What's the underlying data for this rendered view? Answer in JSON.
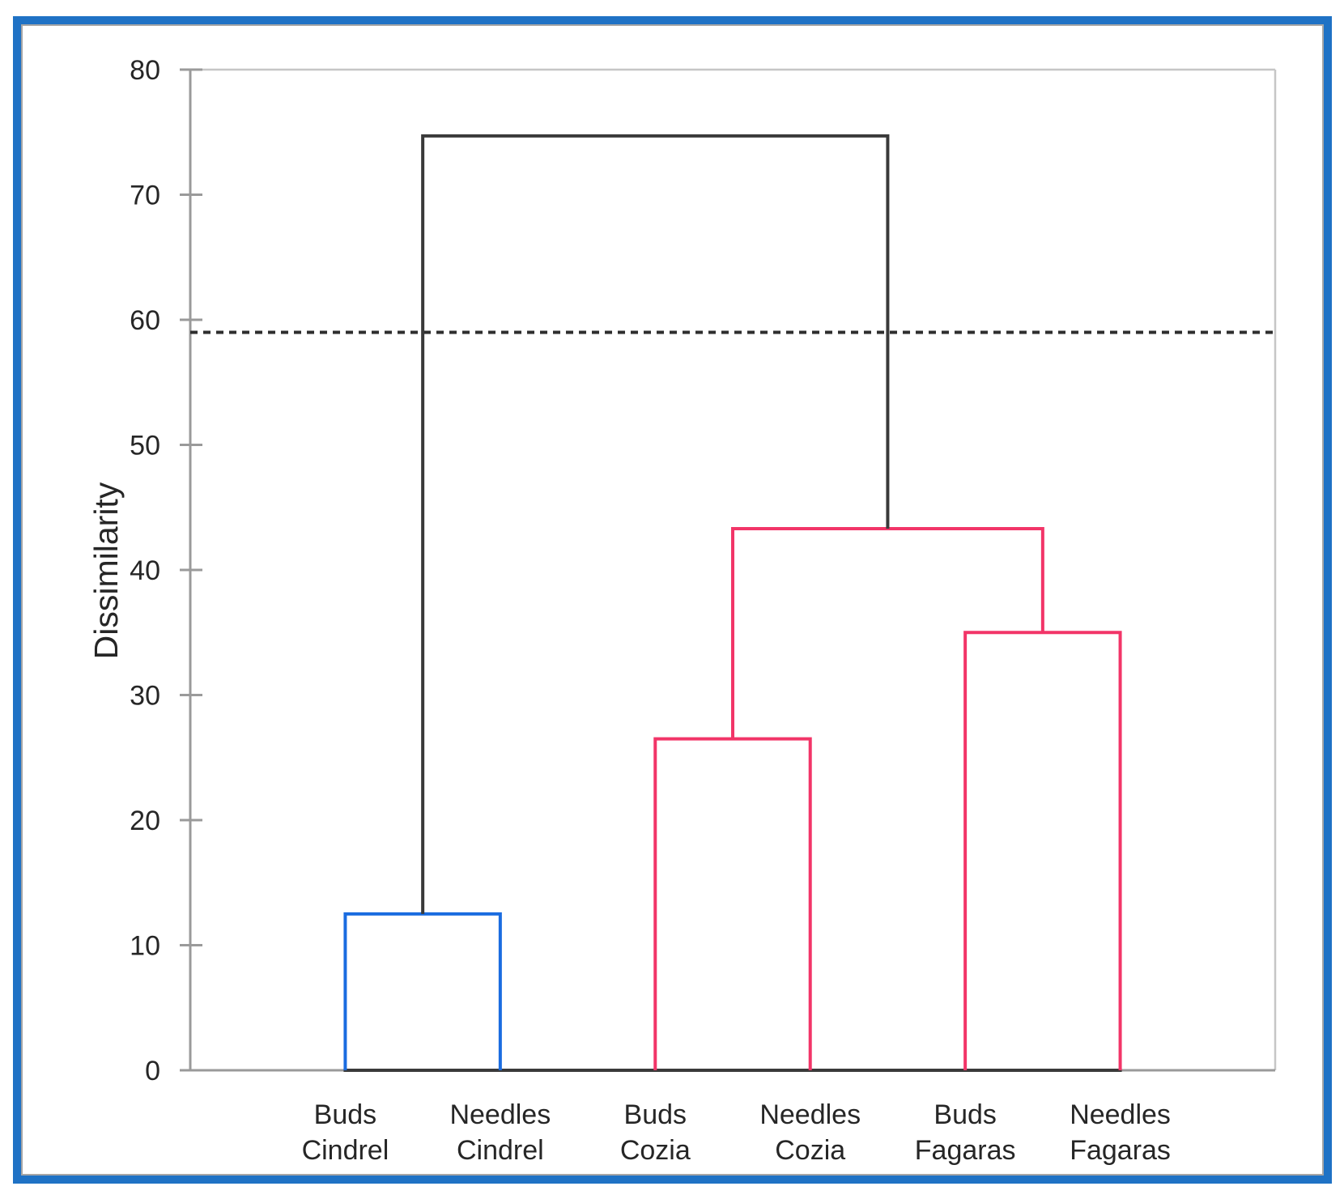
{
  "window": {
    "frame_color": "#1f72c5",
    "inner_line_color": "#a6a6a6",
    "background": "#ffffff"
  },
  "chart_data": {
    "type": "dendrogram",
    "title": "",
    "ylabel": "Dissimilarity",
    "ylim": [
      0,
      80
    ],
    "yticks": [
      80,
      70,
      60,
      50,
      40,
      30,
      20,
      10,
      0
    ],
    "grid": false,
    "legend": "none",
    "threshold_line": {
      "value": 59,
      "style": "dashed",
      "color": "#2e2e2e"
    },
    "leaves": [
      {
        "label": [
          "Buds",
          "Cindrel"
        ]
      },
      {
        "label": [
          "Needles",
          "Cindrel"
        ]
      },
      {
        "label": [
          "Buds",
          "Cozia"
        ]
      },
      {
        "label": [
          "Needles",
          "Cozia"
        ]
      },
      {
        "label": [
          "Buds",
          "Fagaras"
        ]
      },
      {
        "label": [
          "Needles",
          "Fagaras"
        ]
      }
    ],
    "clusters": [
      {
        "id": "cindrel",
        "children": [
          "leaf:0",
          "leaf:1"
        ],
        "height": 12.5,
        "color": "#1a6ce0"
      },
      {
        "id": "cozia",
        "children": [
          "leaf:2",
          "leaf:3"
        ],
        "height": 26.5,
        "color": "#f23568"
      },
      {
        "id": "fagaras",
        "children": [
          "leaf:4",
          "leaf:5"
        ],
        "height": 35.0,
        "color": "#f23568"
      },
      {
        "id": "cozia-fagaras",
        "children": [
          "cozia",
          "fagaras"
        ],
        "height": 43.3,
        "color": "#f23568"
      },
      {
        "id": "root",
        "children": [
          "cindrel",
          "cozia-fagaras"
        ],
        "height": 74.7,
        "color": "#3a3a3a"
      }
    ],
    "axis_color": "#9a9a9a",
    "plot_border_color": "#c6c6c6",
    "text_color": "#262626",
    "baseline_segment_color": "#3a3a3a"
  }
}
